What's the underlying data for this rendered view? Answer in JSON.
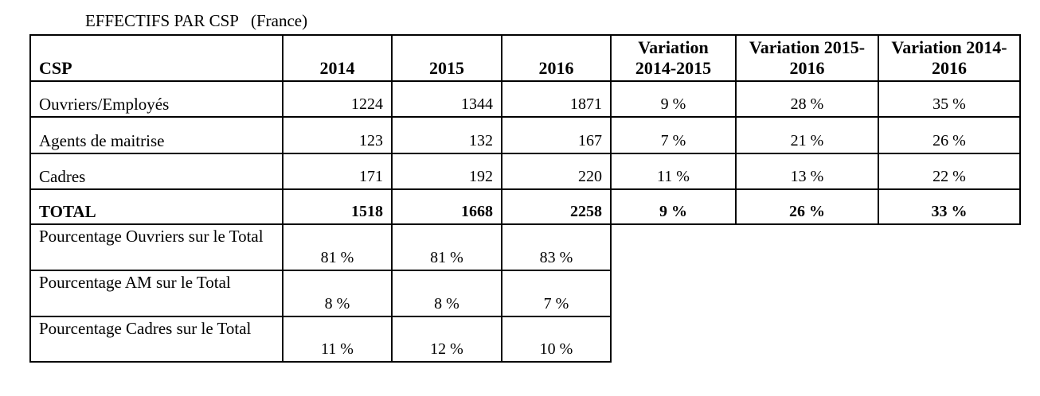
{
  "title": "EFFECTIFS PAR CSP   (France)",
  "table": {
    "header": [
      "CSP",
      "2014",
      "2015",
      "2016",
      "Variation 2014-2015",
      "Variation 2015-2016",
      "Variation 2014-2016"
    ],
    "rows": [
      [
        "Ouvriers/Employés",
        "1224",
        "1344",
        "1871",
        "9 %",
        "28 %",
        "35 %"
      ],
      [
        "Agents de maitrise",
        "123",
        "132",
        "167",
        "7 %",
        "21 %",
        "26 %"
      ],
      [
        "Cadres",
        "171",
        "192",
        "220",
        "11 %",
        "13 %",
        "22 %"
      ]
    ],
    "total": [
      "TOTAL",
      "1518",
      "1668",
      "2258",
      "9 %",
      "26 %",
      "33 %"
    ],
    "percentages": [
      [
        "Pourcentage Ouvriers sur le Total",
        "81 %",
        "81 %",
        "83 %"
      ],
      [
        "Pourcentage AM sur le Total",
        "8 %",
        "8 %",
        "7 %"
      ],
      [
        "Pourcentage Cadres sur le Total",
        "11 %",
        "12 %",
        "10 %"
      ]
    ]
  }
}
